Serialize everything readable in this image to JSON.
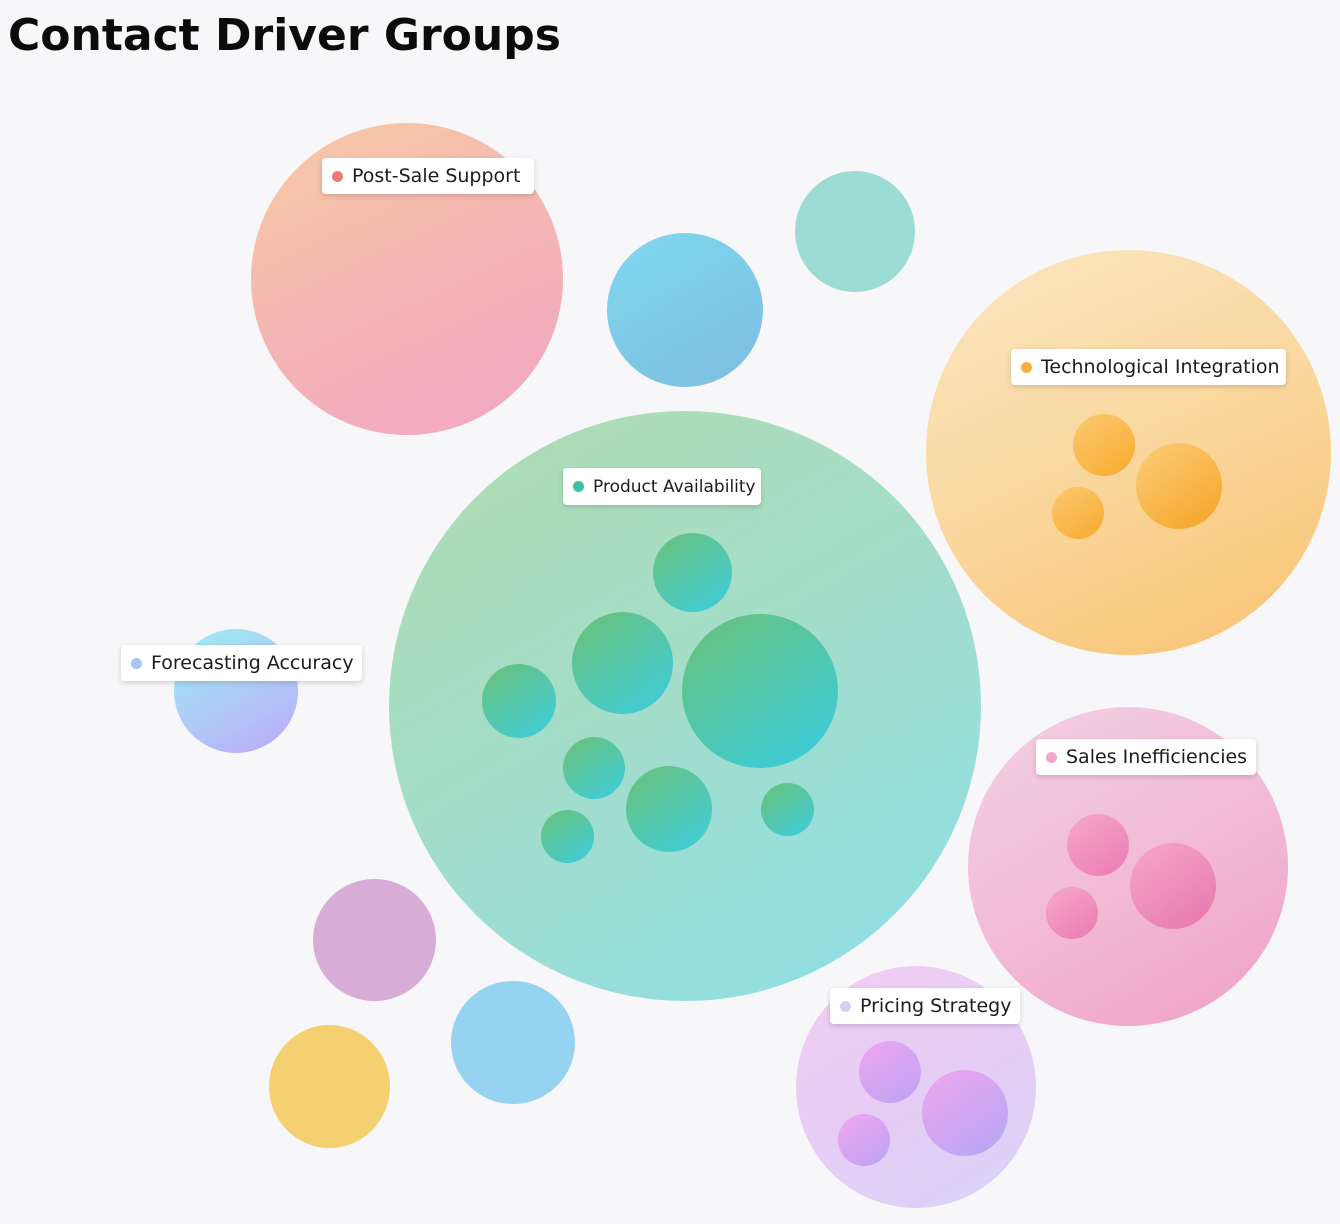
{
  "title": "Contact Driver Groups",
  "groups": [
    {
      "name": "Post-Sale Support",
      "dot_color": "#ee7b73"
    },
    {
      "name": "Technological Integration",
      "dot_color": "#f7b03f"
    },
    {
      "name": "Product Availability",
      "dot_color": "#37c2a4"
    },
    {
      "name": "Forecasting Accuracy",
      "dot_color": "#a9c4f6"
    },
    {
      "name": "Sales Inefficiencies",
      "dot_color": "#f3a6c8"
    },
    {
      "name": "Pricing Strategy",
      "dot_color": "#dccdf7"
    }
  ],
  "colors": {
    "background": "#f7f7f9",
    "post_sale": [
      "#f7c9a4",
      "#f2a9c3"
    ],
    "tech_integration": [
      "#fbe3bb",
      "#f9c374"
    ],
    "product_availability": [
      "#addbb5",
      "#8fdce7"
    ],
    "forecasting": [
      "#a3e8f4",
      "#bbaaf9"
    ],
    "sales_inefficiencies": [
      "#f3cde0",
      "#f0a2c8"
    ],
    "pricing": [
      "#f0cdf3",
      "#d9d0f6"
    ],
    "teal": "#9bdcd4",
    "blue": "#7cc9e9",
    "purple": "#d6abd6",
    "sky": "#93d2f0",
    "yellow": "#f5cf70"
  }
}
